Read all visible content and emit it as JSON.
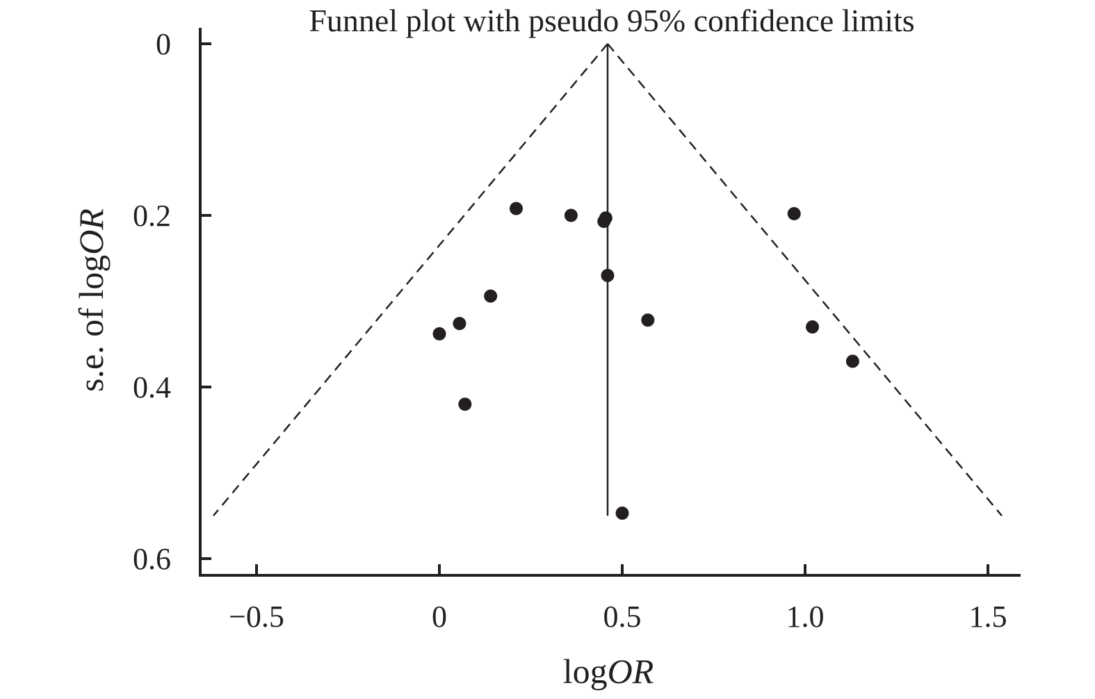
{
  "chart_data": {
    "type": "scatter",
    "title": "Funnel plot with pseudo 95% confidence limits",
    "xlabel": {
      "prefix": "log",
      "italic": "OR"
    },
    "ylabel": {
      "prefix": "s.e. of log",
      "italic": "OR"
    },
    "xlim": [
      -0.66,
      1.56
    ],
    "ylim": [
      0,
      0.62
    ],
    "y_inverted": true,
    "grid": false,
    "xticks": [
      {
        "value": -0.5,
        "label": "−0.5"
      },
      {
        "value": 0,
        "label": "0"
      },
      {
        "value": 0.5,
        "label": "0.5"
      },
      {
        "value": 1.0,
        "label": "1.0"
      },
      {
        "value": 1.5,
        "label": "1.5"
      }
    ],
    "yticks": [
      {
        "value": 0,
        "label": "0"
      },
      {
        "value": 0.2,
        "label": "0.2"
      },
      {
        "value": 0.4,
        "label": "0.4"
      },
      {
        "value": 0.6,
        "label": "0.6"
      }
    ],
    "pooled_logOR": 0.46,
    "ci_max_se": 0.55,
    "series": [
      {
        "points": [
          {
            "x": 0.21,
            "y": 0.192
          },
          {
            "x": 0.36,
            "y": 0.2
          },
          {
            "x": 0.45,
            "y": 0.207
          },
          {
            "x": 0.455,
            "y": 0.203
          },
          {
            "x": 0.97,
            "y": 0.198
          },
          {
            "x": 0.46,
            "y": 0.27
          },
          {
            "x": 0.14,
            "y": 0.294
          },
          {
            "x": 0.57,
            "y": 0.322
          },
          {
            "x": 0.055,
            "y": 0.326
          },
          {
            "x": 0.0,
            "y": 0.338
          },
          {
            "x": 1.02,
            "y": 0.33
          },
          {
            "x": 1.13,
            "y": 0.37
          },
          {
            "x": 0.07,
            "y": 0.42
          },
          {
            "x": 0.5,
            "y": 0.547
          }
        ]
      }
    ]
  }
}
